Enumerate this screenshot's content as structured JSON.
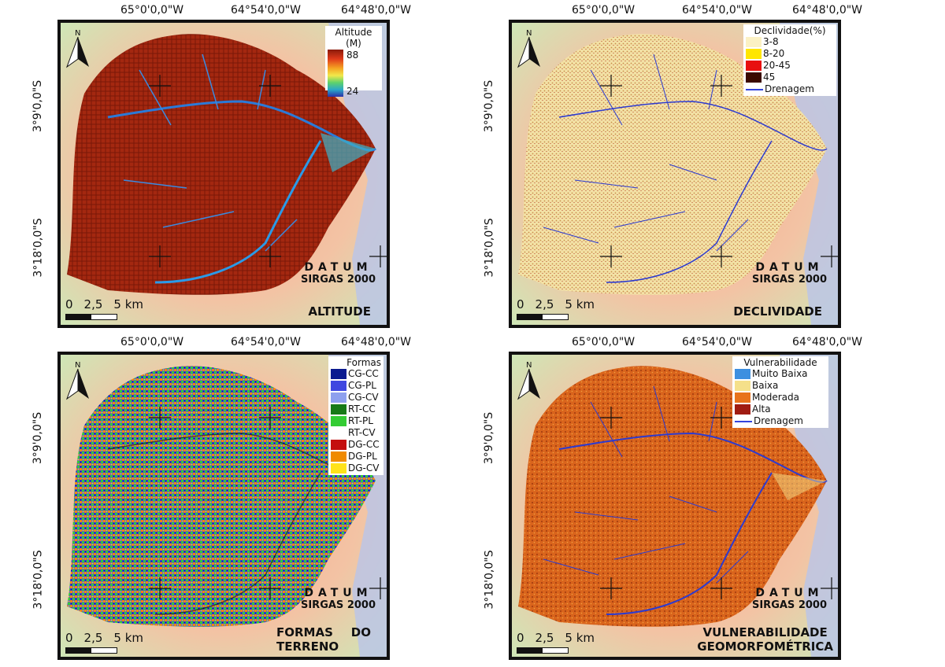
{
  "coords": {
    "lon": [
      "65°0'0,0\"W",
      "64°54'0,0\"W",
      "64°48'0,0\"W"
    ],
    "lat": [
      "3°9'0,0\"S",
      "3°18'0,0\"S"
    ]
  },
  "north_label": "N",
  "datum": {
    "word": "DATUM",
    "name": "SIRGAS 2000"
  },
  "scale": {
    "labels": [
      "0",
      "2,5",
      "5 km"
    ]
  },
  "panels": {
    "altitude": {
      "title": "ALTITUDE",
      "legend": {
        "title": "Altitude (M)",
        "max": "88",
        "min": "24"
      }
    },
    "declividade": {
      "title": "DECLIVIDADE",
      "legend": {
        "title": "Declividade(%)",
        "items": [
          {
            "label": "3-8",
            "color": "#fbf1c4"
          },
          {
            "label": "8-20",
            "color": "#ffe600"
          },
          {
            "label": "20-45",
            "color": "#e81010"
          },
          {
            "label": "45",
            "color": "#3a0a00"
          }
        ],
        "line_label": "Drenagem"
      }
    },
    "formas": {
      "title_line1": "FORMAS",
      "title_do": "DO",
      "title_line2": "TERRENO",
      "legend": {
        "title": "Formas",
        "items": [
          {
            "label": "CG-CC",
            "color": "#0a1a8f"
          },
          {
            "label": "CG-PL",
            "color": "#3f47e0"
          },
          {
            "label": "CG-CV",
            "color": "#8ea0ee"
          },
          {
            "label": "RT-CC",
            "color": "#177a17"
          },
          {
            "label": "RT-PL",
            "color": "#33cc33"
          },
          {
            "label": "RT-CV",
            "color": "#ffffff"
          },
          {
            "label": "DG-CC",
            "color": "#c40e0e"
          },
          {
            "label": "DG-PL",
            "color": "#f08a00"
          },
          {
            "label": "DG-CV",
            "color": "#ffe21a"
          }
        ]
      }
    },
    "vulnerabilidade": {
      "title_line1": "VULNERABILIDADE",
      "title_line2": "GEOMORFOMÉTRICA",
      "legend": {
        "title": "Vulnerabilidade",
        "items": [
          {
            "label": "Muito Baixa",
            "color": "#3d8fe0"
          },
          {
            "label": "Baixa",
            "color": "#f5e08a"
          },
          {
            "label": "Moderada",
            "color": "#e8731c"
          },
          {
            "label": "Alta",
            "color": "#a01c12"
          }
        ],
        "line_label": "Drenagem"
      }
    }
  }
}
